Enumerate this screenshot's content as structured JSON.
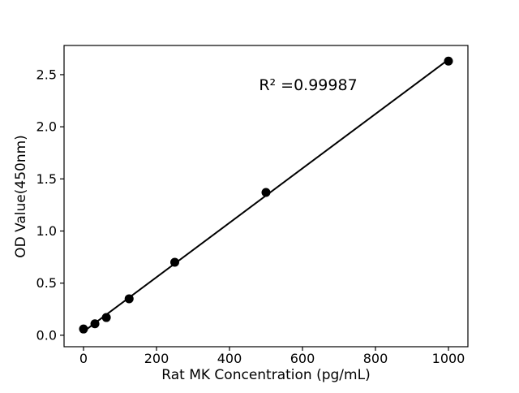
{
  "figure": {
    "background": "#ffffff"
  },
  "chart_data": {
    "type": "scatter",
    "title": "",
    "xlabel": "Rat MK Concentration (pg/mL)",
    "ylabel": "OD Value(450nm)",
    "x": [
      0,
      31.25,
      62.5,
      125,
      250,
      500,
      1000
    ],
    "y": [
      0.06,
      0.11,
      0.17,
      0.35,
      0.7,
      1.37,
      2.63
    ],
    "fit_line": {
      "slope": 0.00261,
      "intercept": 0.035,
      "x_start": 0,
      "x_end": 1000
    },
    "annotation": "R² =0.99987",
    "xticks": [
      "0",
      "200",
      "400",
      "600",
      "800",
      "1000"
    ],
    "xtick_values": [
      0,
      200,
      400,
      600,
      800,
      1000
    ],
    "yticks": [
      "0.0",
      "0.5",
      "1.0",
      "1.5",
      "2.0",
      "2.5"
    ],
    "ytick_values": [
      0,
      0.5,
      1,
      1.5,
      2,
      2.5
    ],
    "xlim": [
      -53.3,
      1053.3
    ],
    "ylim": [
      -0.11,
      2.78
    ],
    "grid": false,
    "legend": "none",
    "marker_color": "#000000",
    "line_color": "#000000"
  }
}
